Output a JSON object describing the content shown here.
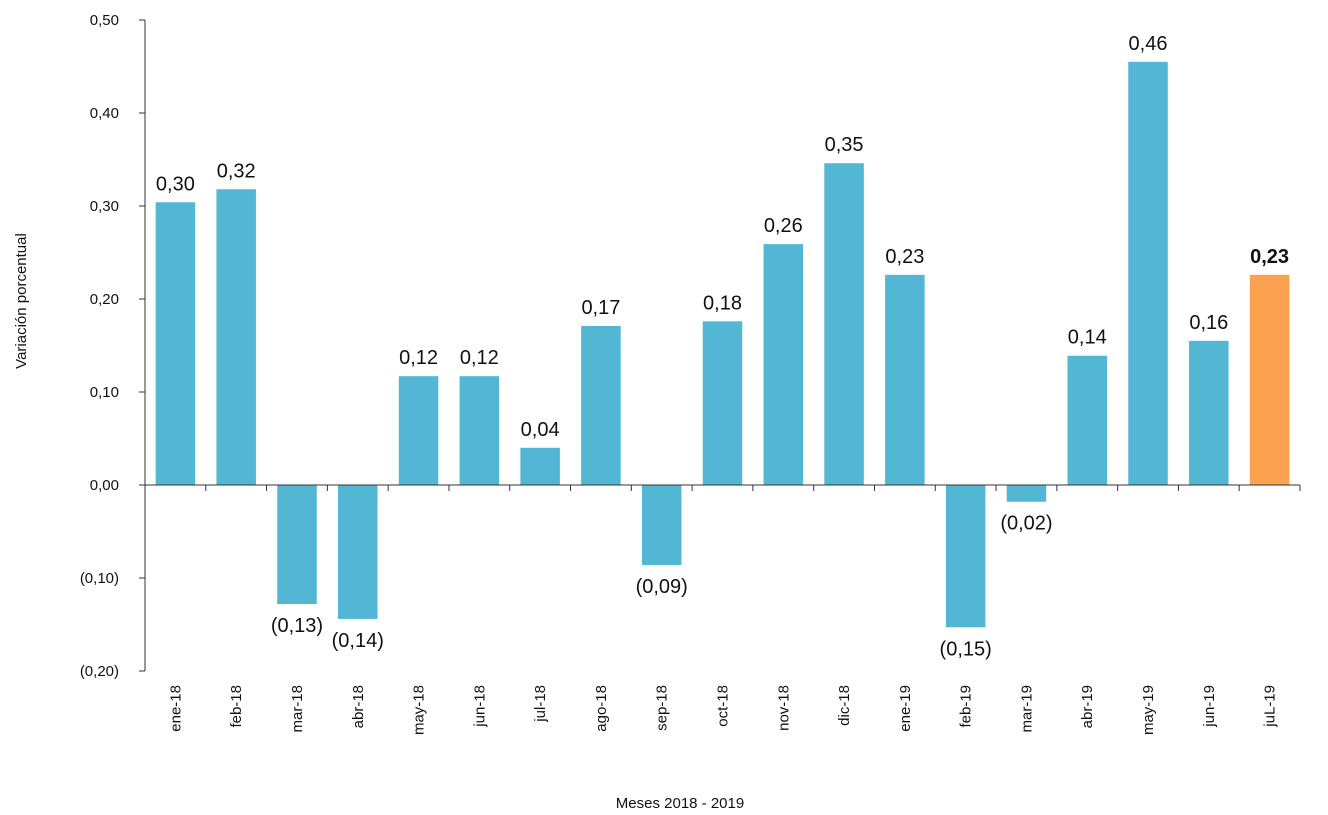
{
  "chart_data": {
    "type": "bar",
    "xlabel": "Meses 2018  - 2019",
    "ylabel": "Variación porcentual",
    "ylim": [
      -0.2,
      0.5
    ],
    "y_ticks": [
      {
        "value": 0.5,
        "label": "0,50"
      },
      {
        "value": 0.4,
        "label": "0,40"
      },
      {
        "value": 0.3,
        "label": "0,30"
      },
      {
        "value": 0.2,
        "label": "0,20"
      },
      {
        "value": 0.1,
        "label": "0,10"
      },
      {
        "value": 0.0,
        "label": "0,00"
      },
      {
        "value": -0.1,
        "label": "(0,10)"
      },
      {
        "value": -0.2,
        "label": "(0,20)"
      }
    ],
    "grid": false,
    "bar_color": "#52B6D4",
    "highlight_color": "#FBA14F",
    "bars": [
      {
        "category": "ene-18",
        "value": 0.304,
        "label": "0,30"
      },
      {
        "category": "feb-18",
        "value": 0.318,
        "label": "0,32"
      },
      {
        "category": "mar-18",
        "value": -0.128,
        "label": "(0,13)"
      },
      {
        "category": "abr-18",
        "value": -0.144,
        "label": "(0,14)"
      },
      {
        "category": "may-18",
        "value": 0.117,
        "label": "0,12"
      },
      {
        "category": "jun-18",
        "value": 0.117,
        "label": "0,12"
      },
      {
        "category": "jul-18",
        "value": 0.04,
        "label": "0,04"
      },
      {
        "category": "ago-18",
        "value": 0.171,
        "label": "0,17"
      },
      {
        "category": "sep-18",
        "value": -0.086,
        "label": "(0,09)"
      },
      {
        "category": "oct-18",
        "value": 0.176,
        "label": "0,18"
      },
      {
        "category": "nov-18",
        "value": 0.259,
        "label": "0,26"
      },
      {
        "category": "dic-18",
        "value": 0.346,
        "label": "0,35"
      },
      {
        "category": "ene-19",
        "value": 0.226,
        "label": "0,23"
      },
      {
        "category": "feb-19",
        "value": -0.153,
        "label": "(0,15)"
      },
      {
        "category": "mar-19",
        "value": -0.018,
        "label": "(0,02)"
      },
      {
        "category": "abr-19",
        "value": 0.139,
        "label": "0,14"
      },
      {
        "category": "may-19",
        "value": 0.455,
        "label": "0,46"
      },
      {
        "category": "jun-19",
        "value": 0.155,
        "label": "0,16"
      },
      {
        "category": "juL-19",
        "value": 0.226,
        "label": "0,23",
        "highlight": true
      }
    ]
  }
}
